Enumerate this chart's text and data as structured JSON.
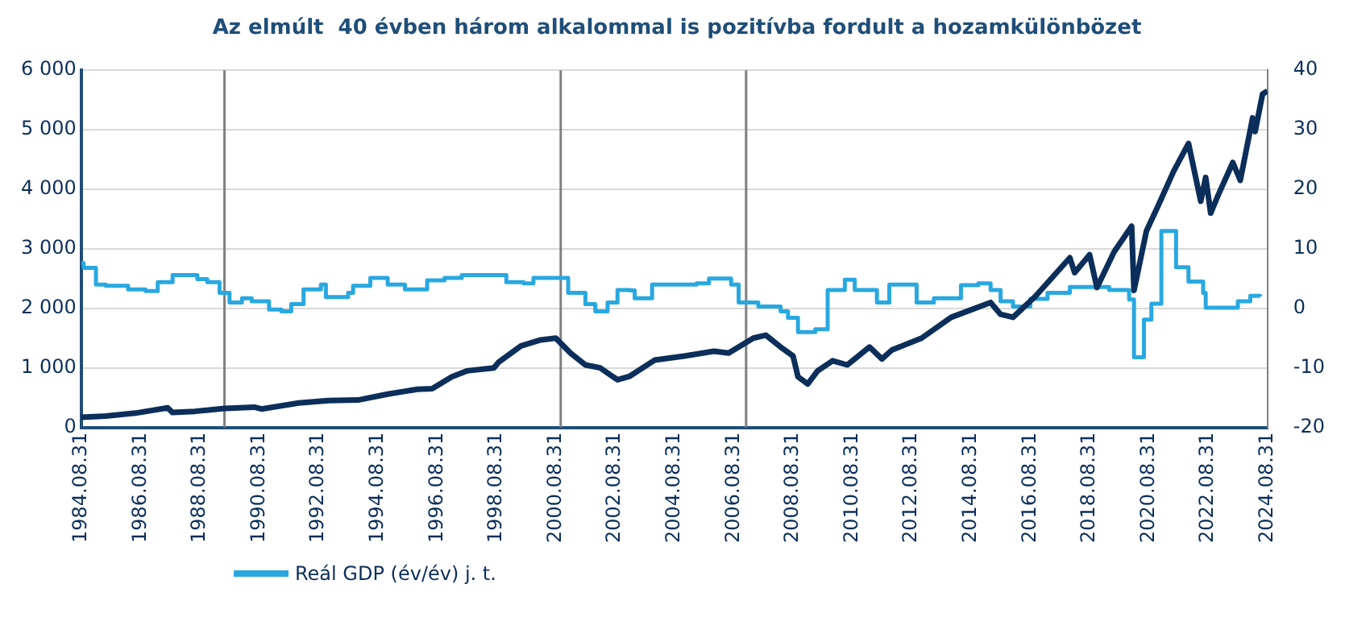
{
  "chart_data": {
    "type": "line",
    "title": "Az elmúlt  40 évben három alkalommal is pozitívba fordult a hozamkülönbözet",
    "xlim": [
      "1984-08-31",
      "2024-08-31"
    ],
    "xticks": [
      {
        "value": "1984-08-31",
        "label": "1984.08.31"
      },
      {
        "value": "1986-08-31",
        "label": "1986.08.31"
      },
      {
        "value": "1988-08-31",
        "label": "1988.08.31"
      },
      {
        "value": "1990-08-31",
        "label": "1990.08.31"
      },
      {
        "value": "1992-08-31",
        "label": "1992.08.31"
      },
      {
        "value": "1994-08-31",
        "label": "1994.08.31"
      },
      {
        "value": "1996-08-31",
        "label": "1996.08.31"
      },
      {
        "value": "1998-08-31",
        "label": "1998.08.31"
      },
      {
        "value": "2000-08-31",
        "label": "2000.08.31"
      },
      {
        "value": "2002-08-31",
        "label": "2002.08.31"
      },
      {
        "value": "2004-08-31",
        "label": "2004.08.31"
      },
      {
        "value": "2006-08-31",
        "label": "2006.08.31"
      },
      {
        "value": "2008-08-31",
        "label": "2008.08.31"
      },
      {
        "value": "2010-08-31",
        "label": "2010.08.31"
      },
      {
        "value": "2012-08-31",
        "label": "2012.08.31"
      },
      {
        "value": "2014-08-31",
        "label": "2014.08.31"
      },
      {
        "value": "2016-08-31",
        "label": "2016.08.31"
      },
      {
        "value": "2018-08-31",
        "label": "2018.08.31"
      },
      {
        "value": "2020-08-31",
        "label": "2020.08.31"
      },
      {
        "value": "2022-08-31",
        "label": "2022.08.31"
      },
      {
        "value": "2024-08-31",
        "label": "2024.08.31"
      }
    ],
    "ylim": [
      0,
      6000
    ],
    "yticks": [
      {
        "value": 0,
        "label": "0"
      },
      {
        "value": 1000,
        "label": "1 000"
      },
      {
        "value": 2000,
        "label": "2 000"
      },
      {
        "value": 3000,
        "label": "3 000"
      },
      {
        "value": 4000,
        "label": "4 000"
      },
      {
        "value": 5000,
        "label": "5 000"
      },
      {
        "value": 6000,
        "label": "6 000"
      }
    ],
    "y2lim": [
      -20,
      40
    ],
    "y2ticks": [
      -20,
      -10,
      0,
      10,
      20,
      30,
      40
    ],
    "grid": "y",
    "legend": "bottom left",
    "ref_lines": [
      {
        "axis": "x",
        "value": "1989-07",
        "color": "#808080"
      },
      {
        "axis": "x",
        "value": "2000-11",
        "color": "#808080"
      },
      {
        "axis": "x",
        "value": "2007-02",
        "color": "#808080"
      }
    ],
    "series": [
      {
        "color": "#0b2e5a",
        "x": [
          "1984-08-31",
          "1985-07",
          "1986-07",
          "1987-08",
          "1987-10",
          "1988-07",
          "1989-07",
          "1990-07",
          "1990-10",
          "1992-01",
          "1993-01",
          "1994-01",
          "1995-01",
          "1996-01",
          "1996-07",
          "1997-03",
          "1997-09",
          "1998-08",
          "1998-10",
          "1999-07",
          "2000-03",
          "2000-09",
          "2001-03",
          "2001-09",
          "2002-03",
          "2002-10",
          "2003-03",
          "2004-01",
          "2005-01",
          "2006-01",
          "2006-07",
          "2007-05",
          "2007-10",
          "2008-04",
          "2008-09",
          "2008-11",
          "2009-03",
          "2009-07",
          "2010-01",
          "2010-07",
          "2011-04",
          "2011-09",
          "2012-01",
          "2013-01",
          "2014-01",
          "2015-05",
          "2015-09",
          "2016-02",
          "2016-11",
          "2018-01",
          "2018-03",
          "2018-09",
          "2018-12",
          "2019-07",
          "2020-02",
          "2020-03",
          "2020-08",
          "2021-01",
          "2021-07",
          "2022-01",
          "2022-06",
          "2022-08",
          "2022-10",
          "2023-01",
          "2023-07",
          "2023-10",
          "2024-03",
          "2024-04",
          "2024-07",
          "2024-08-31"
        ],
        "values": [
          170,
          190,
          240,
          330,
          250,
          270,
          320,
          340,
          310,
          410,
          450,
          460,
          560,
          640,
          650,
          850,
          950,
          1000,
          1100,
          1370,
          1470,
          1500,
          1250,
          1050,
          1000,
          800,
          860,
          1130,
          1200,
          1280,
          1250,
          1500,
          1550,
          1350,
          1200,
          850,
          730,
          950,
          1120,
          1050,
          1350,
          1150,
          1300,
          1500,
          1850,
          2100,
          1900,
          1850,
          2200,
          2850,
          2600,
          2900,
          2350,
          2950,
          3380,
          2300,
          3300,
          3750,
          4300,
          4770,
          3800,
          4200,
          3600,
          3900,
          4450,
          4150,
          5200,
          4970,
          5600,
          5650
        ]
      },
      {
        "type": "step",
        "axis": "y2",
        "name": "Reál GDP (év/év) j. t.",
        "color": "#29a8e0",
        "x": [
          "1984-08-31",
          "1984-10",
          "1985-03",
          "1985-07",
          "1986-04",
          "1986-11",
          "1987-04",
          "1987-10",
          "1988-03",
          "1988-08",
          "1988-12",
          "1989-05",
          "1989-09",
          "1990-02",
          "1990-06",
          "1991-01",
          "1991-06",
          "1991-10",
          "1992-03",
          "1992-10",
          "1992-12",
          "1993-09",
          "1993-11",
          "1994-06",
          "1995-01",
          "1995-08",
          "1996-05",
          "1996-12",
          "1997-07",
          "1998-08",
          "1999-01",
          "1999-08",
          "1999-12",
          "2000-09",
          "2001-02",
          "2001-09",
          "2002-01",
          "2002-06",
          "2002-10",
          "2003-03",
          "2003-05",
          "2003-12",
          "2005-06",
          "2005-11",
          "2006-08",
          "2006-11",
          "2007-07",
          "2008-04",
          "2008-07",
          "2008-11",
          "2009-06",
          "2009-11",
          "2010-06",
          "2010-10",
          "2011-07",
          "2011-12",
          "2012-11",
          "2013-06",
          "2014-05",
          "2014-12",
          "2015-05",
          "2015-09",
          "2016-02",
          "2016-09",
          "2017-04",
          "2018-01",
          "2019-05",
          "2020-01",
          "2020-03",
          "2020-07",
          "2020-10",
          "2021-02",
          "2021-08",
          "2022-01",
          "2022-07",
          "2022-08",
          "2023-09",
          "2024-02",
          "2024-06"
        ],
        "values": [
          7.6,
          6.8,
          4,
          3.8,
          3.2,
          2.9,
          4.4,
          5.6,
          5.6,
          4.9,
          4.4,
          2.6,
          1,
          1.7,
          1.2,
          -0.2,
          -0.5,
          0.7,
          3.2,
          4,
          1.9,
          2.6,
          3.8,
          5.1,
          4,
          3.2,
          4.7,
          5.1,
          5.6,
          5.6,
          4.4,
          4.2,
          5.1,
          5.1,
          2.6,
          0.7,
          -0.5,
          1,
          3.1,
          3,
          1.7,
          4,
          4.2,
          5,
          4,
          1,
          0.3,
          -0.5,
          -1.6,
          -4,
          -3.5,
          3.1,
          4.8,
          3.1,
          1,
          4,
          1,
          1.7,
          3.9,
          4.2,
          3.1,
          1.2,
          0.3,
          1.6,
          2.6,
          3.6,
          3.1,
          1.5,
          -8.2,
          -1.9,
          0.8,
          13,
          6.9,
          4.5,
          2.6,
          0.1,
          1.2,
          2.1,
          2
        ]
      }
    ]
  }
}
